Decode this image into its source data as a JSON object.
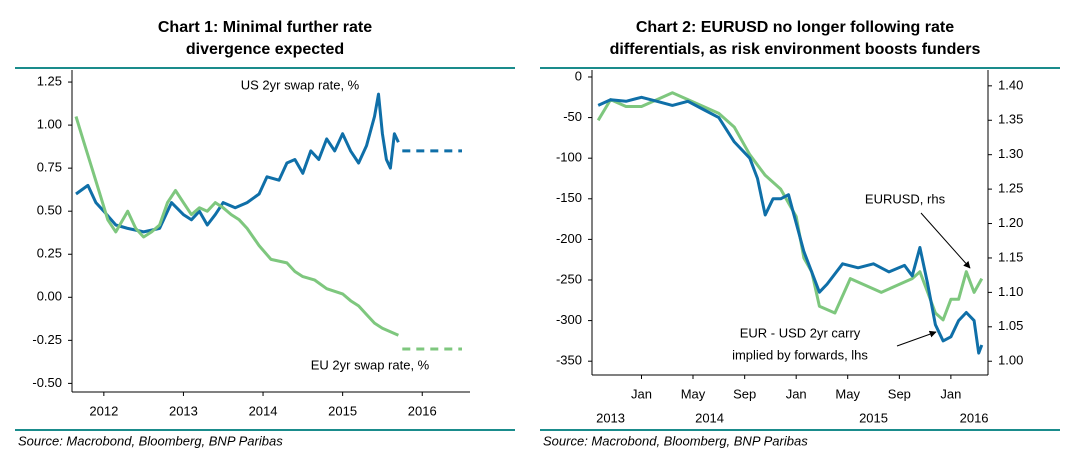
{
  "chart_data": [
    {
      "type": "line",
      "title": [
        "Chart 1: Minimal further rate",
        "divergence expected"
      ],
      "source": "Source: Macrobond, Bloomberg, BNP Paribas",
      "annotations": [
        "US 2yr swap rate, %",
        "EU 2yr swap rate, %"
      ],
      "xlim": [
        2012.1,
        2017.1
      ],
      "ylim": [
        -0.55,
        1.32
      ],
      "xticks": [
        {
          "value": 2012.5,
          "label": "2012"
        },
        {
          "value": 2013.5,
          "label": "2013"
        },
        {
          "value": 2014.5,
          "label": "2014"
        },
        {
          "value": 2015.5,
          "label": "2015"
        },
        {
          "value": 2016.5,
          "label": "2016"
        }
      ],
      "yticks": [
        1.25,
        {
          "value": 1,
          "label": "1.00"
        },
        0.75,
        {
          "value": 0.5,
          "label": "0.50"
        },
        0.25,
        {
          "value": 0,
          "label": "0.00"
        },
        -0.25,
        {
          "value": -0.5,
          "label": "-0.50"
        }
      ],
      "series": [
        {
          "color": "#0f6fa8",
          "x": [
            2012.15,
            2012.3,
            2012.4,
            2012.5,
            2012.65,
            2012.8,
            2013.0,
            2013.2,
            2013.35,
            2013.5,
            2013.6,
            2013.7,
            2013.8,
            2013.9,
            2014.0,
            2014.15,
            2014.3,
            2014.45,
            2014.55,
            2014.7,
            2014.8,
            2014.9,
            2015.0,
            2015.1,
            2015.2,
            2015.3,
            2015.4,
            2015.5,
            2015.6,
            2015.7,
            2015.8,
            2015.9,
            2015.95,
            2016.0,
            2016.05,
            2016.1,
            2016.15,
            2016.2
          ],
          "values": [
            0.6,
            0.65,
            0.55,
            0.5,
            0.42,
            0.4,
            0.38,
            0.4,
            0.55,
            0.48,
            0.45,
            0.5,
            0.42,
            0.48,
            0.55,
            0.52,
            0.55,
            0.6,
            0.7,
            0.68,
            0.78,
            0.8,
            0.72,
            0.85,
            0.8,
            0.92,
            0.85,
            0.95,
            0.85,
            0.78,
            0.88,
            1.05,
            1.18,
            0.95,
            0.8,
            0.75,
            0.95,
            0.9
          ]
        },
        {
          "color": "#0f6fa8",
          "dash": true,
          "x": [
            2016.25,
            2017.0
          ],
          "values": [
            0.85,
            0.85
          ]
        },
        {
          "color": "#7ec77e",
          "x": [
            2012.15,
            2012.25,
            2012.35,
            2012.45,
            2012.55,
            2012.65,
            2012.8,
            2012.9,
            2013.0,
            2013.1,
            2013.2,
            2013.3,
            2013.4,
            2013.5,
            2013.6,
            2013.7,
            2013.8,
            2013.9,
            2014.0,
            2014.1,
            2014.2,
            2014.3,
            2014.45,
            2014.6,
            2014.8,
            2014.9,
            2015.0,
            2015.15,
            2015.3,
            2015.5,
            2015.6,
            2015.7,
            2015.8,
            2015.9,
            2016.0,
            2016.1,
            2016.2
          ],
          "values": [
            1.05,
            0.9,
            0.75,
            0.6,
            0.45,
            0.38,
            0.5,
            0.4,
            0.35,
            0.38,
            0.42,
            0.55,
            0.62,
            0.55,
            0.48,
            0.52,
            0.5,
            0.55,
            0.52,
            0.48,
            0.45,
            0.4,
            0.3,
            0.22,
            0.2,
            0.15,
            0.12,
            0.1,
            0.05,
            0.02,
            -0.02,
            -0.05,
            -0.1,
            -0.15,
            -0.18,
            -0.2,
            -0.22
          ]
        },
        {
          "color": "#7ec77e",
          "dash": true,
          "x": [
            2016.25,
            2017.0
          ],
          "values": [
            -0.3,
            -0.3
          ]
        }
      ]
    },
    {
      "type": "line",
      "title": [
        "Chart 2: EURUSD no longer following rate",
        "differentials, as risk environment boosts funders"
      ],
      "source": "Source: Macrobond, Bloomberg, BNP Paribas",
      "annotations": [
        "EURUSD, rhs",
        "EUR - USD 2yr carry",
        "implied by forwards, lhs"
      ],
      "xlim": [
        2013.68,
        2016.24
      ],
      "ylim": [
        -367,
        8.6
      ],
      "y2lim": [
        0.98,
        1.423
      ],
      "xticks": [
        {
          "value": 2014.0,
          "label": "Jan"
        },
        {
          "value": 2014.333,
          "label": "May"
        },
        {
          "value": 2014.667,
          "label": "Sep"
        },
        {
          "value": 2015.0,
          "label": "Jan"
        },
        {
          "value": 2015.333,
          "label": "May"
        },
        {
          "value": 2015.667,
          "label": "Sep"
        },
        {
          "value": 2016.0,
          "label": "Jan"
        }
      ],
      "year_labels": [
        {
          "value": 2013.8,
          "label": "2013"
        },
        {
          "value": 2014.44,
          "label": "2014"
        },
        {
          "value": 2015.5,
          "label": "2015"
        },
        {
          "value": 2016.15,
          "label": "2016"
        }
      ],
      "yticks": [
        0,
        -50,
        -100,
        -150,
        -200,
        -250,
        -300,
        -350
      ],
      "y2ticks": [
        {
          "value": 1.4,
          "label": "1.40"
        },
        1.35,
        {
          "value": 1.3,
          "label": "1.30"
        },
        1.25,
        {
          "value": 1.2,
          "label": "1.20"
        },
        1.15,
        {
          "value": 1.1,
          "label": "1.10"
        },
        1.05,
        {
          "value": 1,
          "label": "1.00"
        }
      ],
      "series": [
        {
          "color": "#7ec77e",
          "axis": "y2",
          "x": [
            2013.72,
            2013.8,
            2013.9,
            2014.0,
            2014.1,
            2014.2,
            2014.3,
            2014.4,
            2014.5,
            2014.6,
            2014.7,
            2014.8,
            2014.9,
            2015.0,
            2015.05,
            2015.1,
            2015.15,
            2015.25,
            2015.35,
            2015.45,
            2015.55,
            2015.65,
            2015.75,
            2015.8,
            2015.85,
            2015.9,
            2015.95,
            2016.0,
            2016.05,
            2016.1,
            2016.15,
            2016.2
          ],
          "values": [
            1.35,
            1.38,
            1.37,
            1.37,
            1.38,
            1.39,
            1.38,
            1.37,
            1.36,
            1.34,
            1.3,
            1.27,
            1.25,
            1.21,
            1.15,
            1.13,
            1.08,
            1.07,
            1.12,
            1.11,
            1.1,
            1.11,
            1.12,
            1.13,
            1.1,
            1.07,
            1.06,
            1.09,
            1.09,
            1.13,
            1.1,
            1.12
          ]
        },
        {
          "color": "#0f6fa8",
          "x": [
            2013.72,
            2013.8,
            2013.9,
            2014.0,
            2014.1,
            2014.2,
            2014.3,
            2014.4,
            2014.5,
            2014.6,
            2014.7,
            2014.75,
            2014.8,
            2014.85,
            2014.9,
            2014.95,
            2015.0,
            2015.05,
            2015.1,
            2015.15,
            2015.2,
            2015.3,
            2015.4,
            2015.5,
            2015.6,
            2015.7,
            2015.75,
            2015.8,
            2015.85,
            2015.9,
            2015.95,
            2016.0,
            2016.05,
            2016.1,
            2016.15,
            2016.18,
            2016.2
          ],
          "values": [
            -35,
            -28,
            -30,
            -25,
            -30,
            -35,
            -30,
            -40,
            -50,
            -80,
            -100,
            -125,
            -170,
            -150,
            -150,
            -145,
            -180,
            -215,
            -240,
            -265,
            -255,
            -230,
            -235,
            -230,
            -240,
            -232,
            -245,
            -210,
            -255,
            -305,
            -325,
            -320,
            -300,
            -290,
            -300,
            -340,
            -330
          ]
        }
      ]
    }
  ]
}
